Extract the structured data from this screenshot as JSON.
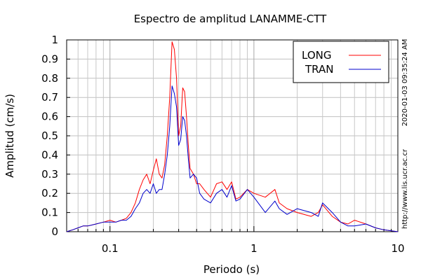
{
  "chart_data": {
    "type": "line",
    "title": "Espectro de amplitud LANAMME-CTT",
    "xlabel": "Periodo (s)",
    "ylabel": "Amplitud (cm/s)",
    "xscale": "log",
    "xlim": [
      0.05,
      10
    ],
    "ylim": [
      0,
      1
    ],
    "grid": true,
    "legend_position": "top-right",
    "x_tick_labels": [
      "0.1",
      "1",
      "10"
    ],
    "y_tick_labels": [
      "0",
      "0.1",
      "0.2",
      "0.3",
      "0.4",
      "0.5",
      "0.6",
      "0.7",
      "0.8",
      "0.9",
      "1"
    ],
    "side_text": [
      "2020-01-03 09:35:24 AM",
      "http://www.lis.ucr.ac.cr"
    ],
    "series": [
      {
        "name": "LONG",
        "color": "#ff0000",
        "x": [
          0.05,
          0.055,
          0.06,
          0.065,
          0.07,
          0.08,
          0.09,
          0.1,
          0.11,
          0.12,
          0.13,
          0.14,
          0.15,
          0.16,
          0.17,
          0.18,
          0.19,
          0.2,
          0.21,
          0.22,
          0.23,
          0.24,
          0.25,
          0.26,
          0.27,
          0.28,
          0.29,
          0.3,
          0.31,
          0.32,
          0.33,
          0.34,
          0.35,
          0.36,
          0.38,
          0.4,
          0.42,
          0.45,
          0.5,
          0.55,
          0.6,
          0.65,
          0.7,
          0.75,
          0.8,
          0.9,
          1.0,
          1.2,
          1.4,
          1.5,
          1.7,
          2.0,
          2.5,
          2.8,
          3.0,
          3.5,
          4.0,
          4.5,
          5.0,
          6.0,
          7.0,
          8.0,
          10.0
        ],
        "y": [
          0.0,
          0.01,
          0.02,
          0.03,
          0.03,
          0.04,
          0.05,
          0.06,
          0.05,
          0.06,
          0.07,
          0.1,
          0.15,
          0.22,
          0.27,
          0.3,
          0.25,
          0.32,
          0.38,
          0.3,
          0.28,
          0.35,
          0.5,
          0.7,
          0.99,
          0.95,
          0.8,
          0.5,
          0.55,
          0.75,
          0.73,
          0.6,
          0.45,
          0.33,
          0.3,
          0.25,
          0.25,
          0.22,
          0.18,
          0.25,
          0.26,
          0.22,
          0.26,
          0.17,
          0.18,
          0.22,
          0.2,
          0.18,
          0.22,
          0.15,
          0.12,
          0.1,
          0.08,
          0.1,
          0.14,
          0.08,
          0.05,
          0.04,
          0.06,
          0.04,
          0.02,
          0.01,
          0.0
        ]
      },
      {
        "name": "TRAN",
        "color": "#0000cc",
        "x": [
          0.05,
          0.055,
          0.06,
          0.065,
          0.07,
          0.08,
          0.09,
          0.1,
          0.11,
          0.12,
          0.13,
          0.14,
          0.15,
          0.16,
          0.17,
          0.18,
          0.19,
          0.2,
          0.21,
          0.22,
          0.23,
          0.24,
          0.25,
          0.26,
          0.27,
          0.28,
          0.29,
          0.3,
          0.31,
          0.32,
          0.33,
          0.34,
          0.35,
          0.36,
          0.38,
          0.4,
          0.42,
          0.45,
          0.5,
          0.55,
          0.6,
          0.65,
          0.7,
          0.75,
          0.8,
          0.9,
          1.0,
          1.2,
          1.4,
          1.5,
          1.7,
          2.0,
          2.5,
          2.8,
          3.0,
          3.5,
          4.0,
          4.5,
          5.0,
          6.0,
          7.0,
          8.0,
          10.0
        ],
        "y": [
          0.0,
          0.01,
          0.02,
          0.03,
          0.03,
          0.04,
          0.05,
          0.05,
          0.05,
          0.06,
          0.06,
          0.08,
          0.12,
          0.15,
          0.2,
          0.22,
          0.2,
          0.25,
          0.2,
          0.22,
          0.22,
          0.3,
          0.4,
          0.55,
          0.76,
          0.72,
          0.65,
          0.45,
          0.48,
          0.6,
          0.58,
          0.5,
          0.38,
          0.28,
          0.3,
          0.28,
          0.2,
          0.17,
          0.15,
          0.2,
          0.22,
          0.18,
          0.24,
          0.16,
          0.17,
          0.22,
          0.18,
          0.1,
          0.16,
          0.12,
          0.09,
          0.12,
          0.1,
          0.08,
          0.15,
          0.1,
          0.05,
          0.03,
          0.03,
          0.04,
          0.02,
          0.01,
          0.0
        ]
      }
    ]
  }
}
